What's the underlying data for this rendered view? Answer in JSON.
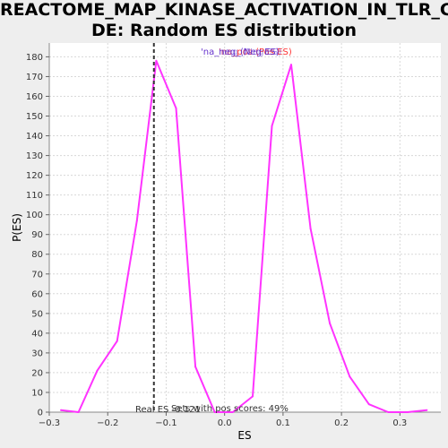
{
  "chart_data": {
    "type": "line",
    "title": "REACTOME_MAP_KINASE_ACTIVATION_IN_TLR_CASCADE: Random ES distribution",
    "title_lines": [
      "REACTOME_MAP_KINASE_ACTIVATION_IN_TLR_CASCA",
      "DE: Random ES distribution"
    ],
    "xlabel": "ES",
    "ylabel": "P(ES)",
    "xlim": [
      -0.3,
      0.37
    ],
    "ylim": [
      0,
      187
    ],
    "x_ticks": [
      -0.3,
      -0.2,
      -0.1,
      0.0,
      0.1,
      0.2,
      0.3
    ],
    "x_tick_labels": [
      "−0.3",
      "−0.2",
      "−0.1",
      "0.0",
      "0.1",
      "0.2",
      "0.3"
    ],
    "y_ticks": [
      0,
      10,
      20,
      30,
      40,
      50,
      60,
      70,
      80,
      90,
      100,
      110,
      120,
      130,
      140,
      150,
      160,
      170,
      180
    ],
    "grid": true,
    "series": [
      {
        "color": "#ff33ff",
        "x": [
          -0.28,
          -0.25,
          -0.218,
          -0.184,
          -0.15,
          -0.117,
          -0.083,
          -0.05,
          -0.017,
          0.014,
          0.048,
          0.081,
          0.114,
          0.147,
          0.18,
          0.214,
          0.247,
          0.28,
          0.313,
          0.346
        ],
        "y": [
          1,
          0,
          21,
          36,
          97,
          178,
          154,
          23,
          0,
          0,
          8,
          145,
          176,
          93,
          45,
          18,
          4,
          0,
          0,
          1
        ]
      }
    ],
    "real_es": -0.121,
    "annotations": {
      "legend_text_1": "'na_neg_(Neg ES)",
      "legend_text_2": "'na_pos (Pos ES)",
      "legend_text_3": "'neg_(Neg ES)",
      "real_es_label": "Real ES -0.121",
      "pos_scores_label": "Sets with pos scores: 49%"
    }
  }
}
